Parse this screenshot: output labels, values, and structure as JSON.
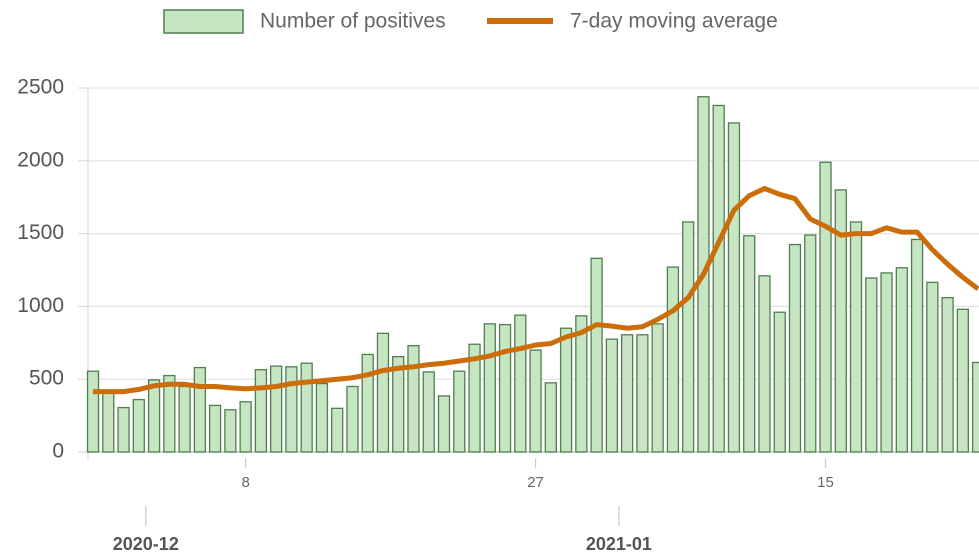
{
  "chart_data": {
    "type": "bar",
    "x": [
      "2020-11-28",
      "2020-11-29",
      "2020-11-30",
      "2020-12-01",
      "2020-12-02",
      "2020-12-03",
      "2020-12-04",
      "2020-12-05",
      "2020-12-06",
      "2020-12-07",
      "2020-12-08",
      "2020-12-09",
      "2020-12-10",
      "2020-12-11",
      "2020-12-12",
      "2020-12-13",
      "2020-12-14",
      "2020-12-15",
      "2020-12-16",
      "2020-12-17",
      "2020-12-18",
      "2020-12-19",
      "2020-12-20",
      "2020-12-21",
      "2020-12-22",
      "2020-12-23",
      "2020-12-24",
      "2020-12-25",
      "2020-12-26",
      "2020-12-27",
      "2020-12-28",
      "2020-12-29",
      "2020-12-30",
      "2020-12-31",
      "2021-01-01",
      "2021-01-02",
      "2021-01-03",
      "2021-01-04",
      "2021-01-05",
      "2021-01-06",
      "2021-01-07",
      "2021-01-08",
      "2021-01-09",
      "2021-01-10",
      "2021-01-11",
      "2021-01-12",
      "2021-01-13",
      "2021-01-14",
      "2021-01-15",
      "2021-01-16",
      "2021-01-17",
      "2021-01-18",
      "2021-01-19",
      "2021-01-20",
      "2021-01-21",
      "2021-01-22",
      "2021-01-23",
      "2021-01-24",
      "2021-01-25"
    ],
    "series": [
      {
        "name": "Number of positives",
        "type": "bar",
        "color": "#c6e5c3",
        "edge_color": "#4f7f4f",
        "values": [
          555,
          420,
          305,
          360,
          495,
          525,
          450,
          580,
          320,
          290,
          345,
          565,
          590,
          585,
          610,
          470,
          300,
          450,
          670,
          815,
          655,
          730,
          550,
          385,
          555,
          740,
          880,
          875,
          940,
          700,
          475,
          850,
          935,
          1330,
          775,
          805,
          805,
          880,
          1270,
          1580,
          2440,
          2380,
          2260,
          1485,
          1210,
          960,
          1425,
          1490,
          1990,
          1800,
          1580,
          1195,
          1230,
          1265,
          1460,
          1165,
          1060,
          980,
          615
        ]
      },
      {
        "name": "7-day moving average",
        "type": "line",
        "color": "#cc6d0a",
        "values": [
          415,
          415,
          415,
          430,
          455,
          465,
          465,
          450,
          450,
          440,
          435,
          440,
          450,
          470,
          480,
          490,
          500,
          510,
          530,
          560,
          575,
          585,
          600,
          610,
          625,
          640,
          660,
          690,
          710,
          735,
          745,
          790,
          820,
          875,
          865,
          850,
          860,
          910,
          970,
          1060,
          1220,
          1440,
          1660,
          1760,
          1810,
          1770,
          1740,
          1600,
          1550,
          1490,
          1500,
          1500,
          1540,
          1510,
          1510,
          1390,
          1290,
          1200,
          1120
        ]
      }
    ],
    "ylim": [
      0,
      2500
    ],
    "yticks": [
      0,
      500,
      1000,
      1500,
      2000,
      2500
    ],
    "xticks": [
      {
        "value": "2020-12-08",
        "label": "8"
      },
      {
        "value": "2020-12-27",
        "label": "27"
      },
      {
        "value": "2021-01-15",
        "label": "15"
      }
    ],
    "month_ticks": [
      {
        "value": "2020-12-01",
        "label": "2020-12"
      },
      {
        "value": "2021-01-01",
        "label": "2021-01"
      }
    ],
    "grid": true,
    "legend": "top"
  }
}
